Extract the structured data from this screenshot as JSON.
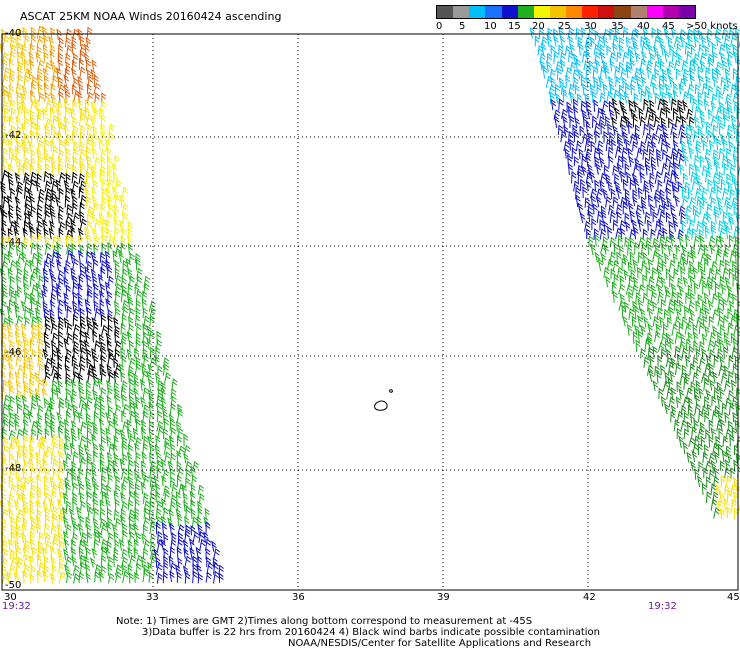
{
  "title": "ASCAT 25KM NOAA Winds 20160424 ascending",
  "scale": {
    "colors": [
      "#555555",
      "#9a9a9a",
      "#00bfff",
      "#1a73ff",
      "#1010d0",
      "#1eb01e",
      "#f5f500",
      "#f5c400",
      "#ff8800",
      "#ff2200",
      "#d01010",
      "#8b4513",
      "#b08070",
      "#ff00ff",
      "#b000b0",
      "#7a00aa"
    ],
    "labels": [
      "0",
      "5",
      "10",
      "15",
      "20",
      "25",
      "30",
      "35",
      "40",
      "45",
      ">50 knots"
    ]
  },
  "axes": {
    "lon_labels": [
      "30",
      "33",
      "36",
      "39",
      "42",
      "45"
    ],
    "lat_labels": [
      "-40",
      "-42",
      "-44",
      "-46",
      "-48",
      "-50"
    ]
  },
  "times": {
    "left": "19:32",
    "right": "19:32"
  },
  "notes": {
    "line1": "Note: 1) Times are GMT 2)Times along bottom correspond to measurement at -45S",
    "line2": "3)Data buffer is 22 hrs from 20160424 4) Black wind barbs indicate possible contamination",
    "line3": "NOAA/NESDIS/Center for Satellite Applications and Research"
  }
}
